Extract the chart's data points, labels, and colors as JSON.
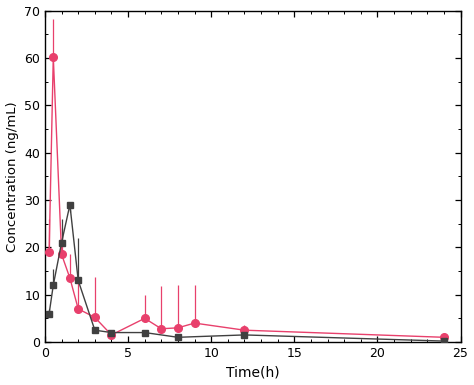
{
  "pink_x": [
    0.25,
    0.5,
    1.0,
    1.5,
    2.0,
    3.0,
    4.0,
    6.0,
    7.0,
    8.0,
    9.0,
    12.0,
    24.0
  ],
  "pink_y": [
    19.0,
    60.2,
    18.5,
    13.5,
    7.0,
    5.2,
    1.5,
    5.0,
    2.8,
    3.0,
    4.0,
    2.5,
    1.0
  ],
  "pink_yerr_lo": [
    0.0,
    0.0,
    0.0,
    0.0,
    0.0,
    0.0,
    0.5,
    0.0,
    0.0,
    0.0,
    0.0,
    0.0,
    0.0
  ],
  "pink_yerr_hi": [
    7.0,
    8.0,
    5.5,
    5.0,
    6.5,
    8.5,
    0.0,
    5.0,
    9.0,
    9.0,
    8.0,
    1.0,
    0.0
  ],
  "grey_x": [
    0.25,
    0.5,
    1.0,
    1.5,
    2.0,
    3.0,
    4.0,
    6.0,
    8.0,
    12.0,
    24.0
  ],
  "grey_y": [
    6.0,
    12.0,
    21.0,
    29.0,
    13.0,
    2.5,
    2.0,
    2.0,
    1.0,
    1.5,
    0.2
  ],
  "grey_yerr_lo": [
    0.0,
    0.0,
    0.0,
    1.5,
    0.0,
    0.0,
    0.0,
    0.0,
    0.0,
    0.0,
    0.0
  ],
  "grey_yerr_hi": [
    1.0,
    3.5,
    5.0,
    0.0,
    9.0,
    0.5,
    0.5,
    0.0,
    0.5,
    1.0,
    0.2
  ],
  "pink_color": "#E8406C",
  "grey_color": "#404040",
  "xlabel": "Time(h)",
  "ylabel": "Concentration (ng/mL)",
  "xlim": [
    0,
    25
  ],
  "ylim": [
    0,
    70
  ],
  "xticks": [
    0,
    5,
    10,
    15,
    20,
    25
  ],
  "yticks": [
    0,
    10,
    20,
    30,
    40,
    50,
    60,
    70
  ],
  "figsize": [
    4.74,
    3.85
  ],
  "dpi": 100
}
